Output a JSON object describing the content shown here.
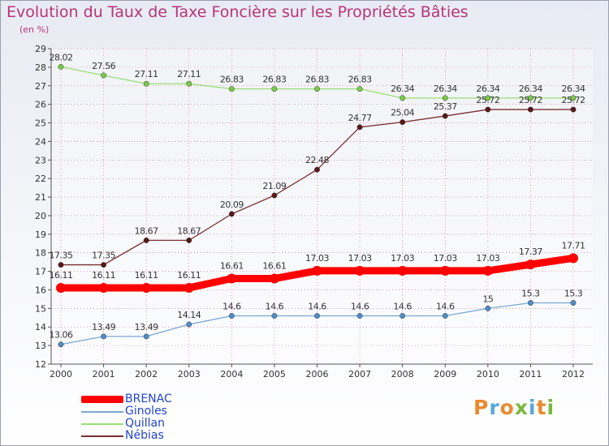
{
  "title": "Evolution du Taux de Taxe Foncière sur les Propriétés Bâties",
  "subtitle": "(en %)",
  "colors": {
    "title": "#b93378",
    "background_top": "#e8ebf3",
    "background_bottom": "#ffffff",
    "grid": "#e06080",
    "axis": "#555555"
  },
  "chart_data": {
    "type": "line",
    "title": "Evolution du Taux de Taxe Foncière sur les Propriétés Bâties",
    "ylabel": "(en %)",
    "xlabel": "",
    "categories": [
      "2000",
      "2001",
      "2002",
      "2003",
      "2004",
      "2005",
      "2006",
      "2007",
      "2008",
      "2009",
      "2010",
      "2011",
      "2012"
    ],
    "ylim": [
      12,
      29
    ],
    "yticks": [
      12,
      13,
      14,
      15,
      16,
      17,
      18,
      19,
      20,
      21,
      22,
      23,
      24,
      25,
      26,
      27,
      28,
      29
    ],
    "grid": true,
    "legend_position": "bottom-left",
    "series": [
      {
        "name": "BRENAC",
        "color": "#ff0000",
        "marker_color": "#ff0000",
        "thick": true,
        "values": [
          16.11,
          16.11,
          16.11,
          16.11,
          16.61,
          16.61,
          17.03,
          17.03,
          17.03,
          17.03,
          17.03,
          17.37,
          17.71
        ],
        "labels": [
          "16.11",
          "16.11",
          "16.11",
          "16.11",
          "16.61",
          "16.61",
          "17.03",
          "17.03",
          "17.03",
          "17.03",
          "17.03",
          "17.37",
          "17.71"
        ]
      },
      {
        "name": "Ginoles",
        "color": "#7aa7cf",
        "marker_color": "#4f8dc9",
        "thick": false,
        "values": [
          13.06,
          13.49,
          13.49,
          14.14,
          14.6,
          14.6,
          14.6,
          14.6,
          14.6,
          14.6,
          15,
          15.3,
          15.3
        ],
        "labels": [
          "13.06",
          "13.49",
          "13.49",
          "14.14",
          "14.6",
          "14.6",
          "14.6",
          "14.6",
          "14.6",
          "14.6",
          "15",
          "15.3",
          "15.3"
        ]
      },
      {
        "name": "Quillan",
        "color": "#99dd77",
        "marker_color": "#77cc44",
        "thick": false,
        "values": [
          28.02,
          27.56,
          27.11,
          27.11,
          26.83,
          26.83,
          26.83,
          26.83,
          26.34,
          26.34,
          26.34,
          26.34,
          26.34
        ],
        "labels": [
          "28.02",
          "27.56",
          "27.11",
          "27.11",
          "26.83",
          "26.83",
          "26.83",
          "26.83",
          "26.34",
          "26.34",
          "26.34",
          "26.34",
          "26.34"
        ]
      },
      {
        "name": "Nébias",
        "color": "#7a3030",
        "marker_color": "#5a1818",
        "thick": false,
        "values": [
          17.35,
          17.35,
          18.67,
          18.67,
          20.09,
          21.09,
          22.48,
          24.77,
          25.04,
          25.37,
          25.72,
          25.72,
          25.72
        ],
        "labels": [
          "17.35",
          "17.35",
          "18.67",
          "18.67",
          "20.09",
          "21.09",
          "22.48",
          "24.77",
          "25.04",
          "25.37",
          "25.72",
          "25.72",
          "25.72"
        ]
      }
    ]
  },
  "logo": {
    "letters": [
      "P",
      "r",
      "o",
      "x",
      "i",
      "t",
      "i"
    ],
    "colors": [
      "#e98b2e",
      "#57a7d8",
      "#e98b2e",
      "#7ab83e",
      "#57a7d8",
      "#e98b2e",
      "#7ab83e"
    ]
  }
}
